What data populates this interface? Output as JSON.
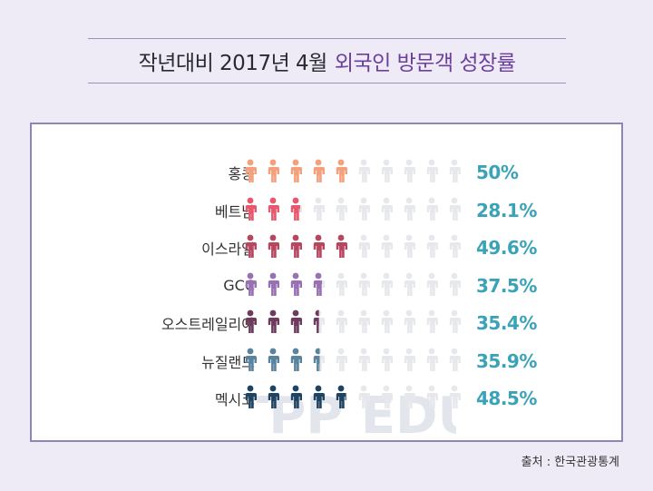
{
  "title": {
    "main": "작년대비 2017년 4월",
    "accent": "외국인 방문객 성장률"
  },
  "chart_data": {
    "type": "pictograph",
    "icons_per_row": 10,
    "unit_percent": 10,
    "empty_color": "#e6e8ec",
    "rows": [
      {
        "label": "홍콩",
        "value": 50,
        "value_label": "50%",
        "color": "#f5a07a"
      },
      {
        "label": "베트남",
        "value": 28.1,
        "value_label": "28.1%",
        "color": "#e8576d"
      },
      {
        "label": "이스라엘",
        "value": 49.6,
        "value_label": "49.6%",
        "color": "#b8465e"
      },
      {
        "label": "GCC",
        "value": 37.5,
        "value_label": "37.5%",
        "color": "#9a70b4"
      },
      {
        "label": "오스트레일리아",
        "value": 35.4,
        "value_label": "35.4%",
        "color": "#6e3b5f"
      },
      {
        "label": "뉴질랜드",
        "value": 35.9,
        "value_label": "35.9%",
        "color": "#5a839e"
      },
      {
        "label": "멕시코",
        "value": 48.5,
        "value_label": "48.5%",
        "color": "#1f4463"
      }
    ]
  },
  "watermark": "TPP EDU",
  "source": "출처 : 한국관광통계"
}
